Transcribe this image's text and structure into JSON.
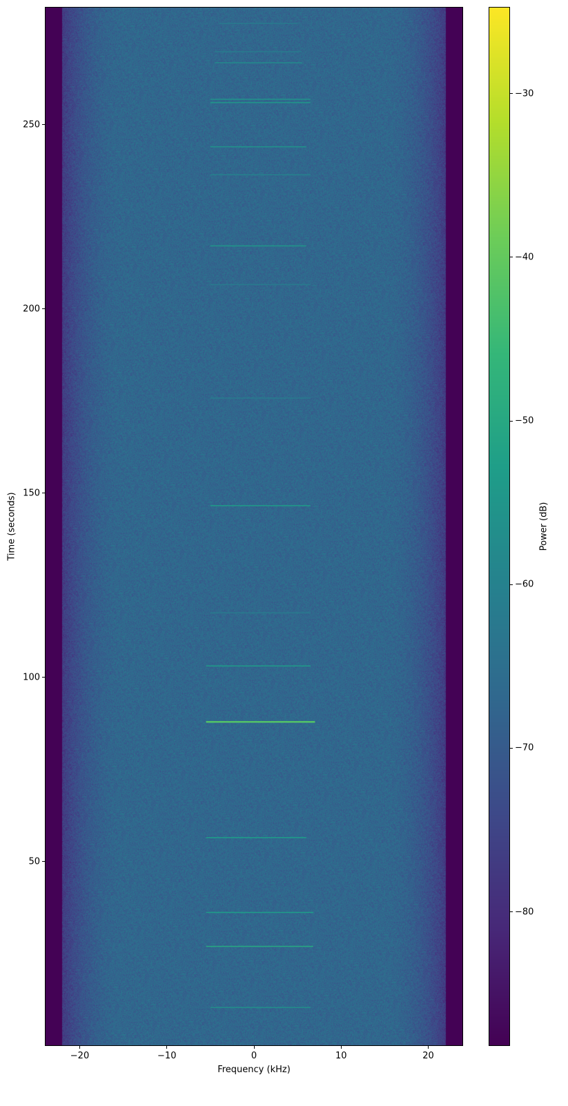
{
  "chart_data": {
    "type": "heatmap",
    "subtype": "spectrogram",
    "title": "",
    "xlabel": "Frequency (kHz)",
    "ylabel": "Time (seconds)",
    "xlim": [
      -24,
      24
    ],
    "ylim": [
      0,
      282
    ],
    "xticks": [
      -20,
      -10,
      0,
      10,
      20
    ],
    "xtick_labels": [
      "−20",
      "−10",
      "0",
      "10",
      "20"
    ],
    "yticks": [
      50,
      100,
      150,
      200,
      250
    ],
    "ytick_labels": [
      "50",
      "100",
      "150",
      "200",
      "250"
    ],
    "grid": false,
    "colormap": "viridis",
    "colorbar": {
      "label": "Power (dB)",
      "range": [
        -88.2,
        -24.7
      ],
      "ticks": [
        -80,
        -70,
        -60,
        -50,
        -40,
        -30
      ],
      "tick_labels": [
        "−80",
        "−70",
        "−60",
        "−50",
        "−40",
        "−30"
      ]
    },
    "background": {
      "noise_floor_db": -67,
      "passband_khz": [
        -15,
        15
      ],
      "rolloff_edge_khz": 22,
      "out_of_band_db": -88
    },
    "signals": [
      {
        "time": 10.4,
        "f_start": -5,
        "f_end": 6.5,
        "power_db": -57
      },
      {
        "time": 27.0,
        "f_start": -5.5,
        "f_end": 6.8,
        "power_db": -50
      },
      {
        "time": 36.2,
        "f_start": -5.5,
        "f_end": 6.8,
        "power_db": -53
      },
      {
        "time": 56.5,
        "f_start": -5.5,
        "f_end": 6,
        "power_db": -53
      },
      {
        "time": 88.0,
        "f_start": -5.5,
        "f_end": 7,
        "power_db": -42
      },
      {
        "time": 103.1,
        "f_start": -5.5,
        "f_end": 6.5,
        "power_db": -54
      },
      {
        "time": 117.5,
        "f_start": -5,
        "f_end": 6.5,
        "power_db": -62
      },
      {
        "time": 146.6,
        "f_start": -5,
        "f_end": 6.5,
        "power_db": -54
      },
      {
        "time": 175.8,
        "f_start": -5,
        "f_end": 6.5,
        "power_db": -62
      },
      {
        "time": 206.6,
        "f_start": -5,
        "f_end": 6.5,
        "power_db": -62
      },
      {
        "time": 217.1,
        "f_start": -5,
        "f_end": 6,
        "power_db": -55
      },
      {
        "time": 236.4,
        "f_start": -5,
        "f_end": 6.5,
        "power_db": -60
      },
      {
        "time": 244.0,
        "f_start": -5,
        "f_end": 6,
        "power_db": -56
      },
      {
        "time": 256.0,
        "f_start": -5,
        "f_end": 6.5,
        "power_db": -55
      },
      {
        "time": 256.9,
        "f_start": -5,
        "f_end": 6.5,
        "power_db": -56
      },
      {
        "time": 266.8,
        "f_start": -4.5,
        "f_end": 5.5,
        "power_db": -58
      },
      {
        "time": 269.8,
        "f_start": -4.5,
        "f_end": 5.5,
        "power_db": -62
      },
      {
        "time": 277.5,
        "f_start": -4,
        "f_end": 5,
        "power_db": -62
      }
    ]
  }
}
